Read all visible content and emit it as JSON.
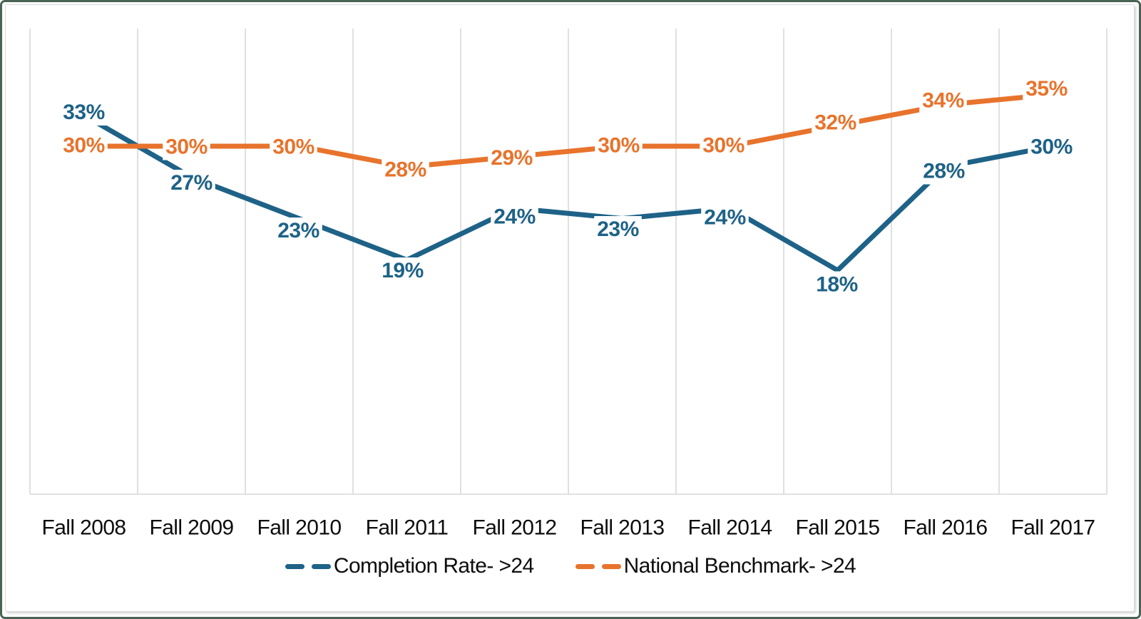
{
  "frame": {
    "outer_border_color": "#4A6354",
    "inner_border_color": "#DADADA",
    "background": "#FFFFFF"
  },
  "chart_data": {
    "type": "line",
    "title": "",
    "xlabel": "",
    "ylabel": "",
    "categories": [
      "Fall 2008",
      "Fall 2009",
      "Fall 2010",
      "Fall 2011",
      "Fall 2012",
      "Fall 2013",
      "Fall 2014",
      "Fall 2015",
      "Fall 2016",
      "Fall 2017"
    ],
    "series": [
      {
        "name": "Completion Rate- >24",
        "color": "#1E6287",
        "values": [
          33,
          27,
          23,
          19,
          24,
          23,
          24,
          18,
          28,
          30
        ],
        "data_labels": [
          "33%",
          "27%",
          "23%",
          "19%",
          "24%",
          "23%",
          "24%",
          "18%",
          "28%",
          "30%"
        ]
      },
      {
        "name": "National Benchmark- >24",
        "color": "#E8732C",
        "values": [
          30,
          30,
          30,
          28,
          29,
          30,
          30,
          32,
          34,
          35
        ],
        "data_labels": [
          "30%",
          "30%",
          "30%",
          "28%",
          "29%",
          "30%",
          "30%",
          "32%",
          "34%",
          "35%"
        ]
      }
    ],
    "value_suffix": "%",
    "ylim": [
      0,
      41
    ],
    "grid": {
      "vertical": true,
      "horizontal": false,
      "color": "#D9D9D9"
    },
    "axis_line_color": "#D9D9D9",
    "x_label_color": "#0D0D0D",
    "legend_position": "bottom",
    "data_label_halo_color": "#FFFFFF"
  }
}
